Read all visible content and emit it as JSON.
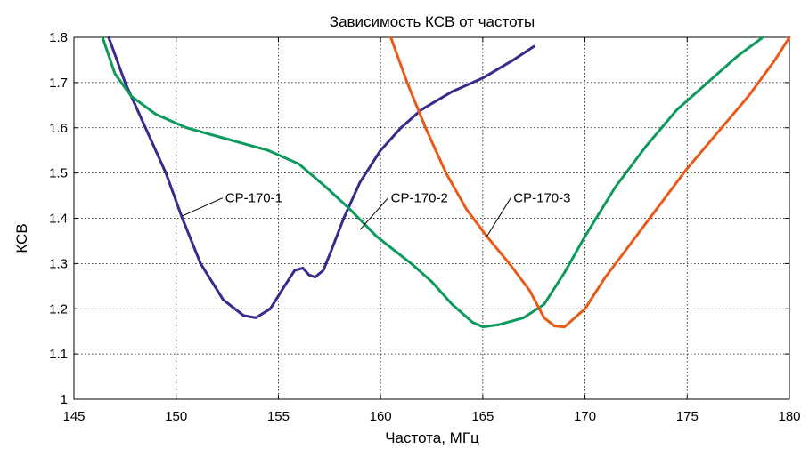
{
  "chart_data": {
    "type": "line",
    "title": "Зависимость КСВ от частоты",
    "xlabel": "Частота, МГц",
    "ylabel": "КСВ",
    "xlim": [
      145,
      180
    ],
    "ylim": [
      1,
      1.8
    ],
    "xticks": [
      145,
      150,
      155,
      160,
      165,
      170,
      175,
      180
    ],
    "yticks": [
      1,
      1.1,
      1.2,
      1.3,
      1.4,
      1.5,
      1.6,
      1.7,
      1.8
    ],
    "xtick_labels": [
      "145",
      "150",
      "155",
      "160",
      "165",
      "170",
      "175",
      "180"
    ],
    "ytick_labels": [
      "1",
      "1.1",
      "1.2",
      "1.3",
      "1.4",
      "1.5",
      "1.6",
      "1.7",
      "1.8"
    ],
    "grid": true,
    "series": [
      {
        "name": "СР-170-1",
        "color": "#3a2a8c",
        "points": [
          [
            146.7,
            1.8
          ],
          [
            147.5,
            1.7
          ],
          [
            148.5,
            1.6
          ],
          [
            149.5,
            1.5
          ],
          [
            150.3,
            1.4
          ],
          [
            151.2,
            1.3
          ],
          [
            152.3,
            1.22
          ],
          [
            153.3,
            1.185
          ],
          [
            153.9,
            1.18
          ],
          [
            154.6,
            1.2
          ],
          [
            155.3,
            1.25
          ],
          [
            155.8,
            1.285
          ],
          [
            156.2,
            1.29
          ],
          [
            156.5,
            1.275
          ],
          [
            156.8,
            1.27
          ],
          [
            157.2,
            1.285
          ],
          [
            157.6,
            1.33
          ],
          [
            158.2,
            1.4
          ],
          [
            159,
            1.48
          ],
          [
            160,
            1.55
          ],
          [
            161,
            1.6
          ],
          [
            162,
            1.64
          ],
          [
            163.5,
            1.68
          ],
          [
            165,
            1.71
          ],
          [
            166.5,
            1.75
          ],
          [
            167.5,
            1.78
          ]
        ]
      },
      {
        "name": "СР-170-2",
        "color": "#0e9a5c",
        "points": [
          [
            146.4,
            1.8
          ],
          [
            147,
            1.72
          ],
          [
            147.8,
            1.67
          ],
          [
            149,
            1.63
          ],
          [
            150.5,
            1.6
          ],
          [
            152.5,
            1.575
          ],
          [
            154.5,
            1.55
          ],
          [
            156,
            1.52
          ],
          [
            157.3,
            1.47
          ],
          [
            158.5,
            1.42
          ],
          [
            159.8,
            1.36
          ],
          [
            161.5,
            1.3
          ],
          [
            162.5,
            1.26
          ],
          [
            163.5,
            1.21
          ],
          [
            164.5,
            1.17
          ],
          [
            165,
            1.16
          ],
          [
            165.8,
            1.165
          ],
          [
            167,
            1.18
          ],
          [
            168,
            1.21
          ],
          [
            169,
            1.28
          ],
          [
            170,
            1.36
          ],
          [
            171.5,
            1.47
          ],
          [
            173,
            1.56
          ],
          [
            174.5,
            1.64
          ],
          [
            176,
            1.7
          ],
          [
            177.5,
            1.76
          ],
          [
            178.7,
            1.8
          ]
        ]
      },
      {
        "name": "СР-170-3",
        "color": "#e85a17",
        "points": [
          [
            160.5,
            1.8
          ],
          [
            161.3,
            1.7
          ],
          [
            162.2,
            1.6
          ],
          [
            163.2,
            1.5
          ],
          [
            164.2,
            1.42
          ],
          [
            165.2,
            1.36
          ],
          [
            166.3,
            1.3
          ],
          [
            167.3,
            1.24
          ],
          [
            168,
            1.18
          ],
          [
            168.5,
            1.162
          ],
          [
            169,
            1.16
          ],
          [
            170,
            1.2
          ],
          [
            171,
            1.27
          ],
          [
            172,
            1.33
          ],
          [
            173.5,
            1.42
          ],
          [
            175,
            1.51
          ],
          [
            176.5,
            1.59
          ],
          [
            178,
            1.67
          ],
          [
            179.3,
            1.75
          ],
          [
            180,
            1.8
          ]
        ]
      }
    ],
    "annotations": [
      {
        "text": "СР-170-1",
        "x": 152.4,
        "y": 1.435,
        "target": [
          150.3,
          1.405
        ]
      },
      {
        "text": "СР-170-2",
        "x": 160.5,
        "y": 1.435,
        "target": [
          159,
          1.375
        ]
      },
      {
        "text": "СР-170-3",
        "x": 166.5,
        "y": 1.435,
        "target": [
          165.2,
          1.36
        ]
      }
    ]
  }
}
